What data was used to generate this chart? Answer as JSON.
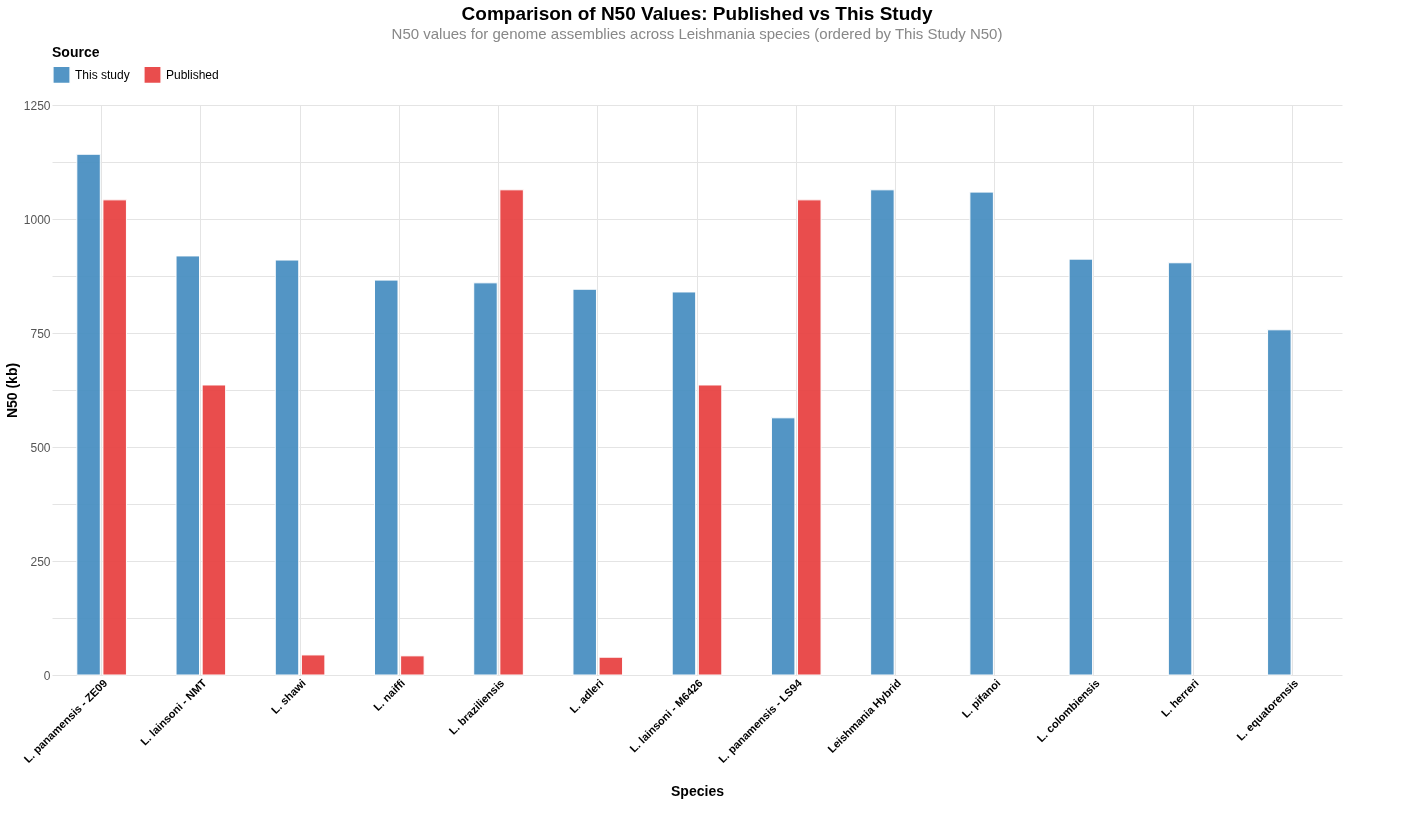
{
  "chart_data": {
    "type": "bar",
    "title": "Comparison of N50 Values: Published vs This Study",
    "subtitle": "N50 values for genome assemblies across Leishmania species (ordered by This Study N50)",
    "xlabel": "Species",
    "ylabel": "N50 (kb)",
    "legend_title": "Source",
    "legend": "top",
    "categories": [
      "L. panamensis - ZE09",
      "L. lainsoni - NMT",
      "L. shawi",
      "L. naiffi",
      "L. braziliensis",
      "L. adleri",
      "L. lainsoni - M6426",
      "L. panamensis - LS94",
      "Leishmania Hybrid",
      "L. pifanoi",
      "L. colombiensis",
      "L. herreri",
      "L. equatorensis"
    ],
    "series": [
      {
        "name": "This study",
        "color": "#4a90c2",
        "values": [
          1142,
          919,
          910,
          866,
          860,
          846,
          840,
          564,
          1064,
          1059,
          912,
          904,
          757
        ]
      },
      {
        "name": "Published",
        "color": "#e84444",
        "values": [
          1042,
          636,
          44,
          42,
          1064,
          39,
          636,
          1042,
          null,
          null,
          null,
          null,
          null
        ]
      }
    ],
    "ylim": [
      0,
      1250
    ],
    "yticks": [
      0,
      {
        "value": 125,
        "label": null
      },
      250,
      {
        "value": 375,
        "label": null
      },
      500,
      {
        "value": 625,
        "label": null
      },
      750,
      {
        "value": 875,
        "label": null
      },
      1000,
      {
        "value": 1125,
        "label": null
      },
      1250
    ],
    "grid": true
  }
}
